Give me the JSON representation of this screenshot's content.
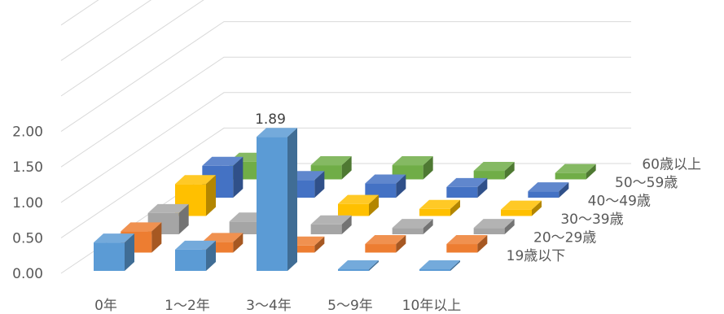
{
  "chart_data": {
    "type": "bar",
    "projection": "3d-column",
    "categories": [
      "0年",
      "1～2年",
      "3～4年",
      "5～9年",
      "10年以上"
    ],
    "ylim": [
      0,
      2.0
    ],
    "yticks": [
      "0.00",
      "0.50",
      "1.00",
      "1.50",
      "2.00"
    ],
    "grid": true,
    "legend": "none",
    "series": [
      {
        "name": "19歳以下",
        "color": "#5B9BD5",
        "values": [
          0.4,
          0.3,
          1.89,
          0.02,
          0.02
        ]
      },
      {
        "name": "20～29歳",
        "color": "#ED7D31",
        "values": [
          0.3,
          0.15,
          0.1,
          0.12,
          0.12
        ]
      },
      {
        "name": "30～39歳",
        "color": "#A5A5A5",
        "values": [
          0.3,
          0.18,
          0.14,
          0.09,
          0.09
        ]
      },
      {
        "name": "40～49歳",
        "color": "#FFC000",
        "values": [
          0.45,
          0.2,
          0.17,
          0.1,
          0.09
        ]
      },
      {
        "name": "50～59歳",
        "color": "#4472C4",
        "values": [
          0.45,
          0.25,
          0.2,
          0.15,
          0.09
        ]
      },
      {
        "name": "60歳以上",
        "color": "#70AD47",
        "values": [
          0.25,
          0.2,
          0.2,
          0.12,
          0.09
        ]
      }
    ],
    "data_labels": [
      {
        "series": 0,
        "category": 2,
        "text": "1.89"
      }
    ]
  }
}
